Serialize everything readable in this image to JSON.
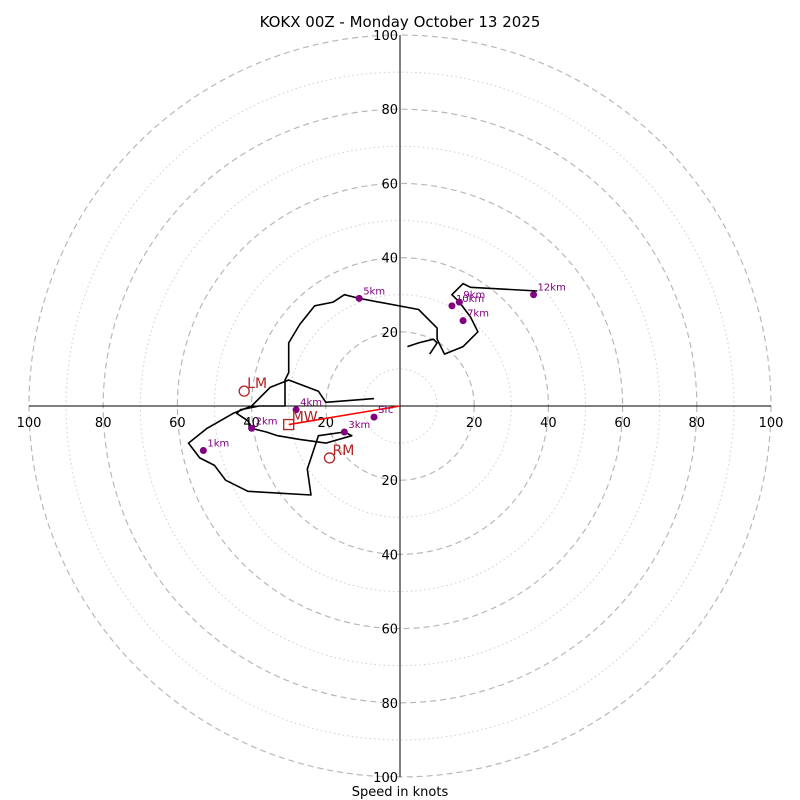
{
  "chart_data": {
    "type": "hodograph",
    "title": "KOKX 00Z - Monday October 13 2025",
    "xlabel": "Speed in knots",
    "range": [
      -100,
      100
    ],
    "major_rings": [
      20,
      40,
      60,
      80,
      100
    ],
    "minor_rings": [
      10,
      30,
      50,
      70,
      90
    ],
    "tick_labels": [
      "100",
      "80",
      "60",
      "40",
      "20",
      "20",
      "40",
      "60",
      "80",
      "100"
    ],
    "y_tick_labels": [
      "100",
      "80",
      "60",
      "40",
      "20",
      "20",
      "40",
      "60",
      "80",
      "100"
    ],
    "hodograph_trace": [
      [
        -7,
        2
      ],
      [
        -20,
        1
      ],
      [
        -22,
        4
      ],
      [
        -30,
        7
      ],
      [
        -35,
        5
      ],
      [
        -40,
        0
      ],
      [
        -45,
        -2
      ],
      [
        -52,
        -6
      ],
      [
        -57,
        -10
      ],
      [
        -54,
        -14
      ],
      [
        -50,
        -16
      ],
      [
        -47,
        -20
      ],
      [
        -41,
        -23
      ],
      [
        -24,
        -24
      ],
      [
        -25,
        -17
      ],
      [
        -22,
        -8
      ],
      [
        -15,
        -7
      ],
      [
        -13,
        -8
      ],
      [
        -20,
        -10
      ],
      [
        -27,
        -9
      ],
      [
        -33,
        -8
      ],
      [
        -36,
        -7
      ],
      [
        -40,
        -6
      ],
      [
        -41,
        -4
      ],
      [
        -44,
        -2
      ],
      [
        -43,
        -1
      ],
      [
        -38,
        0
      ],
      [
        -31,
        0
      ],
      [
        -31,
        1
      ],
      [
        -31,
        5
      ],
      [
        -31,
        7
      ],
      [
        -30,
        9
      ],
      [
        -30,
        12
      ],
      [
        -30,
        14
      ],
      [
        -30,
        17
      ],
      [
        -27,
        22
      ],
      [
        -23,
        27
      ],
      [
        -18,
        28
      ],
      [
        -15,
        30
      ],
      [
        -11,
        29
      ],
      [
        5,
        26
      ],
      [
        10,
        21
      ],
      [
        10,
        18
      ],
      [
        12,
        14
      ],
      [
        17,
        16
      ],
      [
        21,
        20
      ],
      [
        19,
        24
      ],
      [
        16,
        28
      ],
      [
        14,
        30
      ],
      [
        17,
        33
      ],
      [
        19,
        32
      ],
      [
        37,
        31
      ]
    ],
    "hodograph_tail": [
      [
        2,
        16
      ],
      [
        5,
        17
      ],
      [
        9,
        18
      ],
      [
        10,
        17
      ],
      [
        8,
        14
      ]
    ],
    "height_points": [
      {
        "label": "Sfc",
        "u": -7,
        "v": -3
      },
      {
        "label": "1km",
        "u": -53,
        "v": -12
      },
      {
        "label": "2km",
        "u": -40,
        "v": -6
      },
      {
        "label": "3km",
        "u": -15,
        "v": -7
      },
      {
        "label": "4km",
        "u": -28,
        "v": -1
      },
      {
        "label": "5km",
        "u": -11,
        "v": 29
      },
      {
        "label": "7km",
        "u": 17,
        "v": 23
      },
      {
        "label": "9km",
        "u": 16,
        "v": 28
      },
      {
        "label": "10km",
        "u": 14,
        "v": 27
      },
      {
        "label": "12km",
        "u": 36,
        "v": 30
      }
    ],
    "storm_motions": [
      {
        "label": "LM",
        "u": -42,
        "v": 4,
        "marker": "circle"
      },
      {
        "label": "RM",
        "u": -19,
        "v": -14,
        "marker": "circle"
      },
      {
        "label": "MW",
        "u": -30,
        "v": -5,
        "marker": "square"
      }
    ],
    "shear_vector": {
      "from": [
        0,
        0
      ],
      "to": [
        -30,
        -5
      ]
    },
    "colors": {
      "trace": "#000000",
      "height_point": "#800080",
      "storm_motion": "#b22222",
      "shear_vector": "#ff0000"
    }
  }
}
